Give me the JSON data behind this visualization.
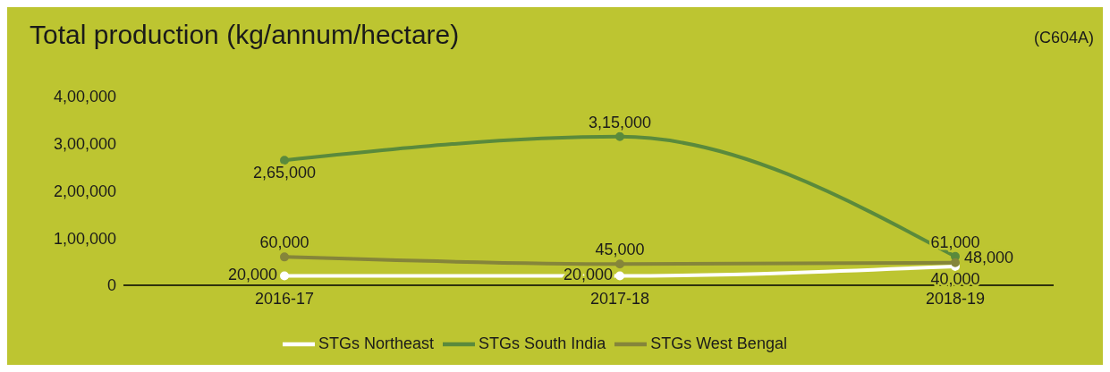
{
  "chart_data": {
    "type": "line",
    "title": "Total production (kg/annum/hectare)",
    "annotations": [
      "(C604A)"
    ],
    "categories": [
      "2016-17",
      "2017-18",
      "2018-19"
    ],
    "series": [
      {
        "name": "STGs Northeast",
        "color": "#ffffff",
        "values": [
          20000,
          20000,
          40000
        ],
        "value_labels": [
          "20,000",
          "20,000",
          "40,000"
        ]
      },
      {
        "name": "STGs South India",
        "color": "#5a8a3c",
        "values": [
          265000,
          315000,
          61000
        ],
        "value_labels": [
          "2,65,000",
          "3,15,000",
          "61,000"
        ]
      },
      {
        "name": "STGs West Bengal",
        "color": "#85853a",
        "values": [
          60000,
          45000,
          48000
        ],
        "value_labels": [
          "60,000",
          "45,000",
          "48,000"
        ]
      }
    ],
    "ylim": [
      0,
      400000
    ],
    "yticks": [
      {
        "value": 0,
        "label": "0"
      },
      {
        "value": 100000,
        "label": "1,00,000"
      },
      {
        "value": 200000,
        "label": "2,00,000"
      },
      {
        "value": 300000,
        "label": "3,00,000"
      },
      {
        "value": 400000,
        "label": "4,00,000"
      }
    ],
    "grid": false,
    "legend": "bottom",
    "marker": "circle",
    "line_style": "solid"
  }
}
